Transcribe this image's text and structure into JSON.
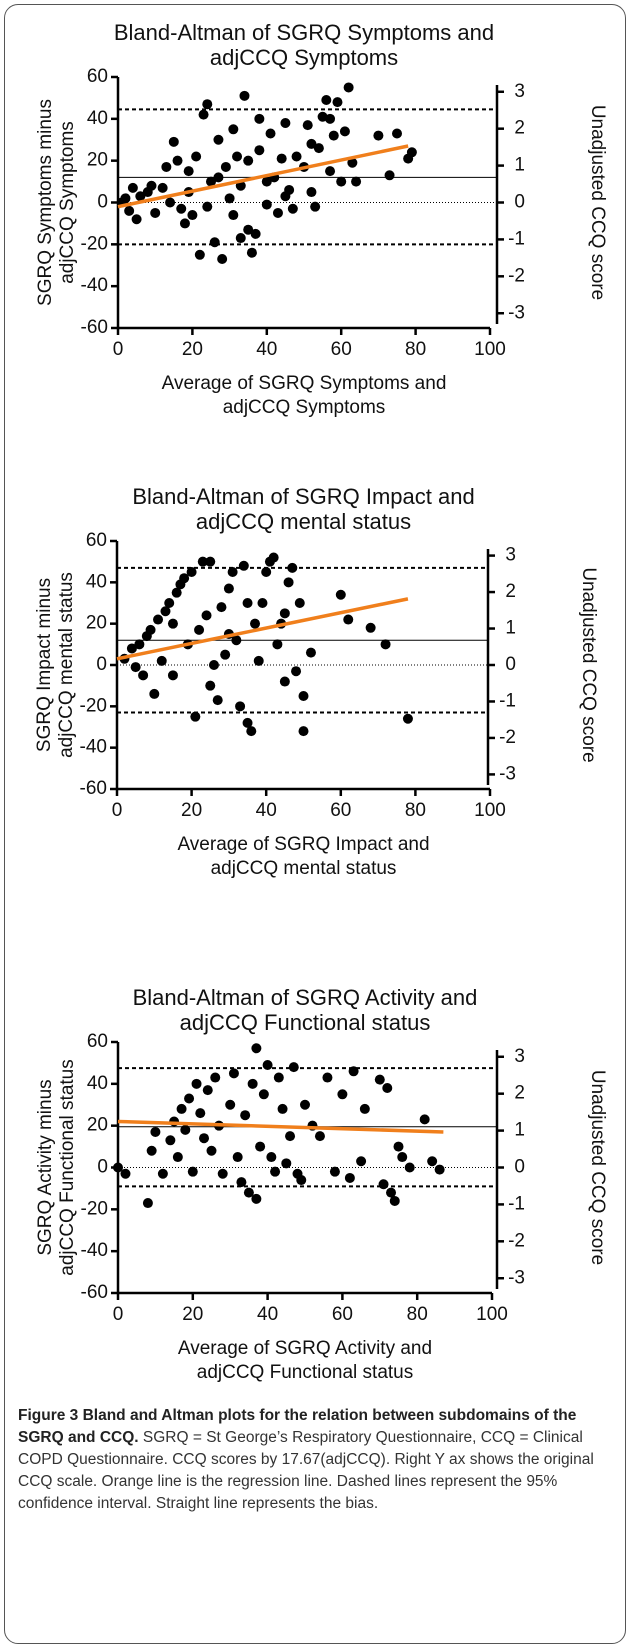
{
  "chart_data": [
    {
      "type": "scatter",
      "title": [
        "Bland-Altman of SGRQ Symptoms and",
        "adjCCQ Symptoms"
      ],
      "ylabel": [
        "SGRQ Symptoms minus",
        "adjCCQ Symptoms"
      ],
      "xlabel": [
        "Average of SGRQ Symptoms and",
        "adjCCQ Symptoms"
      ],
      "y2label": "Unadjusted CCQ score",
      "xlim": [
        0,
        100
      ],
      "xticks": [
        0,
        20,
        40,
        60,
        80,
        100
      ],
      "ylim": [
        -60,
        60
      ],
      "yticks": [
        -60,
        -40,
        -20,
        0,
        20,
        40,
        60
      ],
      "y2lim": [
        -3.4,
        3.4
      ],
      "y2ticks": [
        -3,
        -2,
        -1,
        0,
        1,
        2,
        3
      ],
      "color": "#000000",
      "bias": 12,
      "upper_limit": 44.5,
      "lower_limit": -20,
      "regression": {
        "x": [
          0,
          78
        ],
        "y": [
          -2,
          27
        ],
        "color": "#f07f1c"
      },
      "x": [
        1,
        2,
        3,
        4,
        5,
        6,
        8,
        9,
        10,
        12,
        13,
        14,
        15,
        16,
        17,
        18,
        19,
        20,
        21,
        22,
        23,
        24,
        25,
        26,
        27,
        28,
        29,
        30,
        31,
        32,
        33,
        34,
        35,
        36,
        37,
        38,
        38,
        40,
        41,
        42,
        43,
        44,
        45,
        46,
        47,
        48,
        50,
        51,
        52,
        53,
        54,
        55,
        56,
        57,
        58,
        59,
        60,
        61,
        62,
        63,
        64,
        70,
        73,
        75,
        78,
        79,
        31,
        27,
        35,
        45,
        52,
        24,
        19,
        33,
        40,
        57
      ],
      "values": [
        0,
        2,
        -4,
        7,
        -8,
        3,
        5,
        8,
        -5,
        7,
        17,
        0,
        29,
        20,
        -3,
        -10,
        15,
        -6,
        22,
        -25,
        42,
        47,
        10,
        -19,
        30,
        -27,
        17,
        2,
        -6,
        22,
        -17,
        51,
        -13,
        -24,
        -15,
        40,
        25,
        -1,
        33,
        12,
        -5,
        21,
        38,
        6,
        -3,
        22,
        17,
        37,
        5,
        -2,
        26,
        41,
        49,
        15,
        32,
        48,
        10,
        34,
        55,
        19,
        10,
        32,
        13,
        33,
        21,
        24,
        35,
        12,
        20,
        3,
        28,
        -2,
        5,
        8,
        10,
        40
      ]
    },
    {
      "type": "scatter",
      "title": [
        "Bland-Altman of SGRQ Impact and",
        "adjCCQ mental status"
      ],
      "ylabel": [
        "SGRQ Impact minus",
        "adjCCQ mental status"
      ],
      "xlabel": [
        "Average of SGRQ Impact and",
        "adjCCQ mental status"
      ],
      "y2label": "Unadjusted CCQ score",
      "xlim": [
        0,
        100
      ],
      "xticks": [
        0,
        20,
        40,
        60,
        80,
        100
      ],
      "ylim": [
        -60,
        60
      ],
      "yticks": [
        -60,
        -40,
        -20,
        0,
        20,
        40,
        60
      ],
      "y2lim": [
        -3.4,
        3.4
      ],
      "y2ticks": [
        -3,
        -2,
        -1,
        0,
        1,
        2,
        3
      ],
      "color": "#000000",
      "bias": 12,
      "upper_limit": 47,
      "lower_limit": -23,
      "regression": {
        "x": [
          0,
          78
        ],
        "y": [
          3,
          32
        ],
        "color": "#f07f1c"
      },
      "x": [
        2,
        4,
        6,
        7,
        8,
        9,
        10,
        11,
        12,
        13,
        14,
        15,
        16,
        17,
        18,
        19,
        20,
        21,
        22,
        23,
        24,
        25,
        26,
        27,
        28,
        29,
        30,
        31,
        32,
        33,
        34,
        35,
        36,
        37,
        38,
        39,
        40,
        41,
        42,
        43,
        44,
        45,
        46,
        47,
        48,
        49,
        50,
        50,
        52,
        60,
        62,
        68,
        72,
        78,
        5,
        15,
        25,
        35,
        45,
        30
      ],
      "values": [
        3,
        8,
        10,
        -5,
        14,
        17,
        -14,
        22,
        2,
        26,
        30,
        -5,
        35,
        39,
        42,
        10,
        45,
        -25,
        17,
        50,
        24,
        50,
        0,
        -17,
        28,
        5,
        37,
        45,
        12,
        -20,
        48,
        -28,
        -32,
        20,
        2,
        30,
        45,
        50,
        52,
        10,
        20,
        -8,
        40,
        47,
        -3,
        30,
        -15,
        -32,
        6,
        34,
        22,
        18,
        10,
        -26,
        -1,
        20,
        -10,
        30,
        25,
        15
      ]
    },
    {
      "type": "scatter",
      "title": [
        "Bland-Altman of SGRQ Activity and",
        "adjCCQ Functional status"
      ],
      "ylabel": [
        "SGRQ Activity minus",
        "adjCCQ Functional status"
      ],
      "xlabel": [
        "Average of SGRQ Activity and",
        "adjCCQ Functional status"
      ],
      "y2label": "Unadjusted CCQ score",
      "xlim": [
        0,
        100
      ],
      "xticks": [
        0,
        20,
        40,
        60,
        80,
        100
      ],
      "ylim": [
        -60,
        60
      ],
      "yticks": [
        -60,
        -40,
        -20,
        0,
        20,
        40,
        60
      ],
      "y2lim": [
        -3.4,
        3.4
      ],
      "y2ticks": [
        -3,
        -2,
        -1,
        0,
        1,
        2,
        3
      ],
      "color": "#000000",
      "bias": 19.5,
      "upper_limit": 47.5,
      "lower_limit": -9,
      "regression": {
        "x": [
          0,
          87
        ],
        "y": [
          22,
          17
        ],
        "color": "#f07f1c"
      },
      "x": [
        0,
        2,
        8,
        9,
        10,
        12,
        14,
        15,
        16,
        17,
        18,
        19,
        20,
        21,
        22,
        23,
        24,
        25,
        26,
        27,
        28,
        30,
        31,
        32,
        33,
        34,
        35,
        36,
        37,
        37,
        38,
        39,
        40,
        41,
        42,
        43,
        44,
        45,
        46,
        47,
        48,
        49,
        50,
        52,
        54,
        56,
        58,
        60,
        62,
        63,
        65,
        66,
        70,
        71,
        72,
        73,
        74,
        75,
        76,
        78,
        82,
        84,
        86
      ],
      "values": [
        0,
        -3,
        -17,
        8,
        17,
        -3,
        13,
        22,
        5,
        28,
        18,
        33,
        -2,
        40,
        26,
        14,
        37,
        8,
        43,
        20,
        -3,
        30,
        45,
        5,
        -7,
        25,
        -12,
        40,
        -15,
        57,
        10,
        35,
        49,
        5,
        -2,
        43,
        28,
        2,
        15,
        48,
        -3,
        -6,
        30,
        20,
        15,
        43,
        -2,
        35,
        -5,
        46,
        3,
        28,
        42,
        -8,
        38,
        -12,
        -16,
        10,
        5,
        0,
        23,
        3,
        -1
      ]
    }
  ],
  "caption": {
    "label": "Figure 3 Bland and Altman plots for the relation between subdomains of the SGRQ and CCQ.",
    "text": "SGRQ = St George’s Respiratory Questionnaire, CCQ = Clinical COPD Questionnaire. CCQ scores by 17.67(adjCCQ). Right Y ax shows the original CCQ scale. Orange line is the regression line. Dashed lines represent the 95% confidence interval. Straight line represents the bias."
  }
}
